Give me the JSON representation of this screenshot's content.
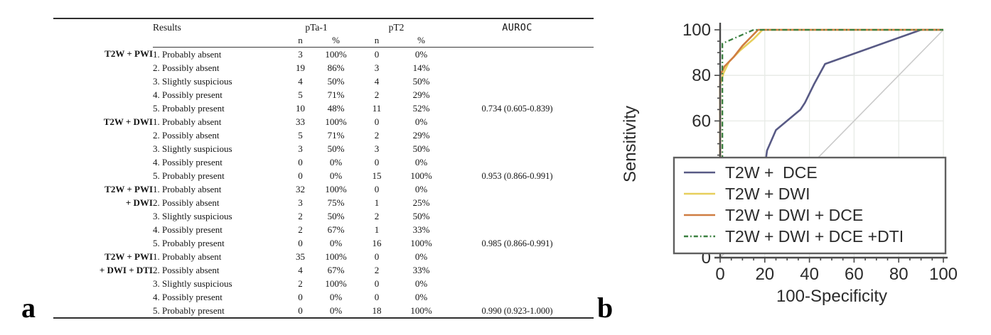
{
  "figure": {
    "panel_a_label": "a",
    "panel_b_label": "b"
  },
  "table": {
    "headers": {
      "results": "Results",
      "pta1": "pTa-1",
      "pt2": "pT2",
      "auroc": "AUROC",
      "n": "n",
      "pct": "%"
    },
    "rows": [
      {
        "group": "T2W + PWI",
        "result": "1. Probably absent",
        "n1": "3",
        "p1": "100%",
        "n2": "0",
        "p2": "0%",
        "auroc": ""
      },
      {
        "group": "",
        "result": "2. Possibly absent",
        "n1": "19",
        "p1": "86%",
        "n2": "3",
        "p2": "14%",
        "auroc": ""
      },
      {
        "group": "",
        "result": "3. Slightly suspicious",
        "n1": "4",
        "p1": "50%",
        "n2": "4",
        "p2": "50%",
        "auroc": ""
      },
      {
        "group": "",
        "result": "4. Possibly present",
        "n1": "5",
        "p1": "71%",
        "n2": "2",
        "p2": "29%",
        "auroc": ""
      },
      {
        "group": "",
        "result": "5. Probably present",
        "n1": "10",
        "p1": "48%",
        "n2": "11",
        "p2": "52%",
        "auroc": "0.734 (0.605-0.839)"
      },
      {
        "group": "T2W + DWI",
        "result": "1. Probably absent",
        "n1": "33",
        "p1": "100%",
        "n2": "0",
        "p2": "0%",
        "auroc": ""
      },
      {
        "group": "",
        "result": "2. Possibly absent",
        "n1": "5",
        "p1": "71%",
        "n2": "2",
        "p2": "29%",
        "auroc": ""
      },
      {
        "group": "",
        "result": "3. Slightly suspicious",
        "n1": "3",
        "p1": "50%",
        "n2": "3",
        "p2": "50%",
        "auroc": ""
      },
      {
        "group": "",
        "result": "4. Possibly present",
        "n1": "0",
        "p1": "0%",
        "n2": "0",
        "p2": "0%",
        "auroc": ""
      },
      {
        "group": "",
        "result": "5. Probably present",
        "n1": "0",
        "p1": "0%",
        "n2": "15",
        "p2": "100%",
        "auroc": "0.953 (0.866-0.991)"
      },
      {
        "group": "T2W + PWI",
        "result": "1. Probably absent",
        "n1": "32",
        "p1": "100%",
        "n2": "0",
        "p2": "0%",
        "auroc": ""
      },
      {
        "group": "+ DWI",
        "result": "2. Possibly absent",
        "n1": "3",
        "p1": "75%",
        "n2": "1",
        "p2": "25%",
        "auroc": ""
      },
      {
        "group": "",
        "result": "3. Slightly suspicious",
        "n1": "2",
        "p1": "50%",
        "n2": "2",
        "p2": "50%",
        "auroc": ""
      },
      {
        "group": "",
        "result": "4. Possibly present",
        "n1": "2",
        "p1": "67%",
        "n2": "1",
        "p2": "33%",
        "auroc": ""
      },
      {
        "group": "",
        "result": "5. Probably present",
        "n1": "0",
        "p1": "0%",
        "n2": "16",
        "p2": "100%",
        "auroc": "0.985 (0.866-0.991)"
      },
      {
        "group": "T2W + PWI",
        "result": "1. Probably absent",
        "n1": "35",
        "p1": "100%",
        "n2": "0",
        "p2": "0%",
        "auroc": ""
      },
      {
        "group": "+ DWI + DTI",
        "result": "2. Possibly absent",
        "n1": "4",
        "p1": "67%",
        "n2": "2",
        "p2": "33%",
        "auroc": ""
      },
      {
        "group": "",
        "result": "3. Slightly suspicious",
        "n1": "2",
        "p1": "100%",
        "n2": "0",
        "p2": "0%",
        "auroc": ""
      },
      {
        "group": "",
        "result": "4. Possibly present",
        "n1": "0",
        "p1": "0%",
        "n2": "0",
        "p2": "0%",
        "auroc": ""
      },
      {
        "group": "",
        "result": "5. Probably present",
        "n1": "0",
        "p1": "0%",
        "n2": "18",
        "p2": "100%",
        "auroc": "0.990 (0.923-1.000)"
      }
    ]
  },
  "chart_data": {
    "type": "line",
    "title": "",
    "xlabel": "100-Specificity",
    "ylabel": "Sensitivity",
    "xlim": [
      0,
      100
    ],
    "ylim": [
      0,
      100
    ],
    "x_ticks": [
      0,
      20,
      40,
      60,
      80,
      100
    ],
    "y_ticks": [
      0,
      20,
      40,
      60,
      80,
      100
    ],
    "minor_tick_step": 5,
    "grid": true,
    "grid_color": "#e7eae6",
    "axis_color": "#4a4a4a",
    "legend_position": "overlay-bottom-left",
    "reference_line": {
      "from": [
        0,
        0
      ],
      "to": [
        100,
        100
      ],
      "color": "#cacaca"
    },
    "series": [
      {
        "name": "T2W +  DCE",
        "color": "#585a85",
        "style": "solid",
        "points": [
          [
            20,
            28
          ],
          [
            20.6,
            44
          ],
          [
            21,
            47
          ],
          [
            25,
            56
          ],
          [
            36,
            65
          ],
          [
            38,
            68
          ],
          [
            42,
            76
          ],
          [
            47,
            85
          ],
          [
            90,
            100
          ],
          [
            100,
            100
          ]
        ]
      },
      {
        "name": "T2W + DWI",
        "color": "#e7cf5b",
        "style": "solid",
        "points": [
          [
            0,
            28
          ],
          [
            0,
            76
          ],
          [
            1.5,
            81
          ],
          [
            4,
            86
          ],
          [
            9,
            91
          ],
          [
            15,
            96
          ],
          [
            19,
            100
          ],
          [
            100,
            100
          ]
        ]
      },
      {
        "name": "T2W + DWI + DCE",
        "color": "#cf7d42",
        "style": "solid",
        "points": [
          [
            0,
            28
          ],
          [
            0,
            80
          ],
          [
            2,
            84
          ],
          [
            6,
            88
          ],
          [
            10,
            93
          ],
          [
            14,
            97
          ],
          [
            17,
            100
          ],
          [
            100,
            100
          ]
        ]
      },
      {
        "name": "T2W + DWI + DCE +DTI",
        "color": "#3a8040",
        "style": "dash-dot",
        "points": [
          [
            1,
            28
          ],
          [
            1,
            94
          ],
          [
            15,
            100
          ],
          [
            100,
            100
          ]
        ]
      }
    ]
  }
}
